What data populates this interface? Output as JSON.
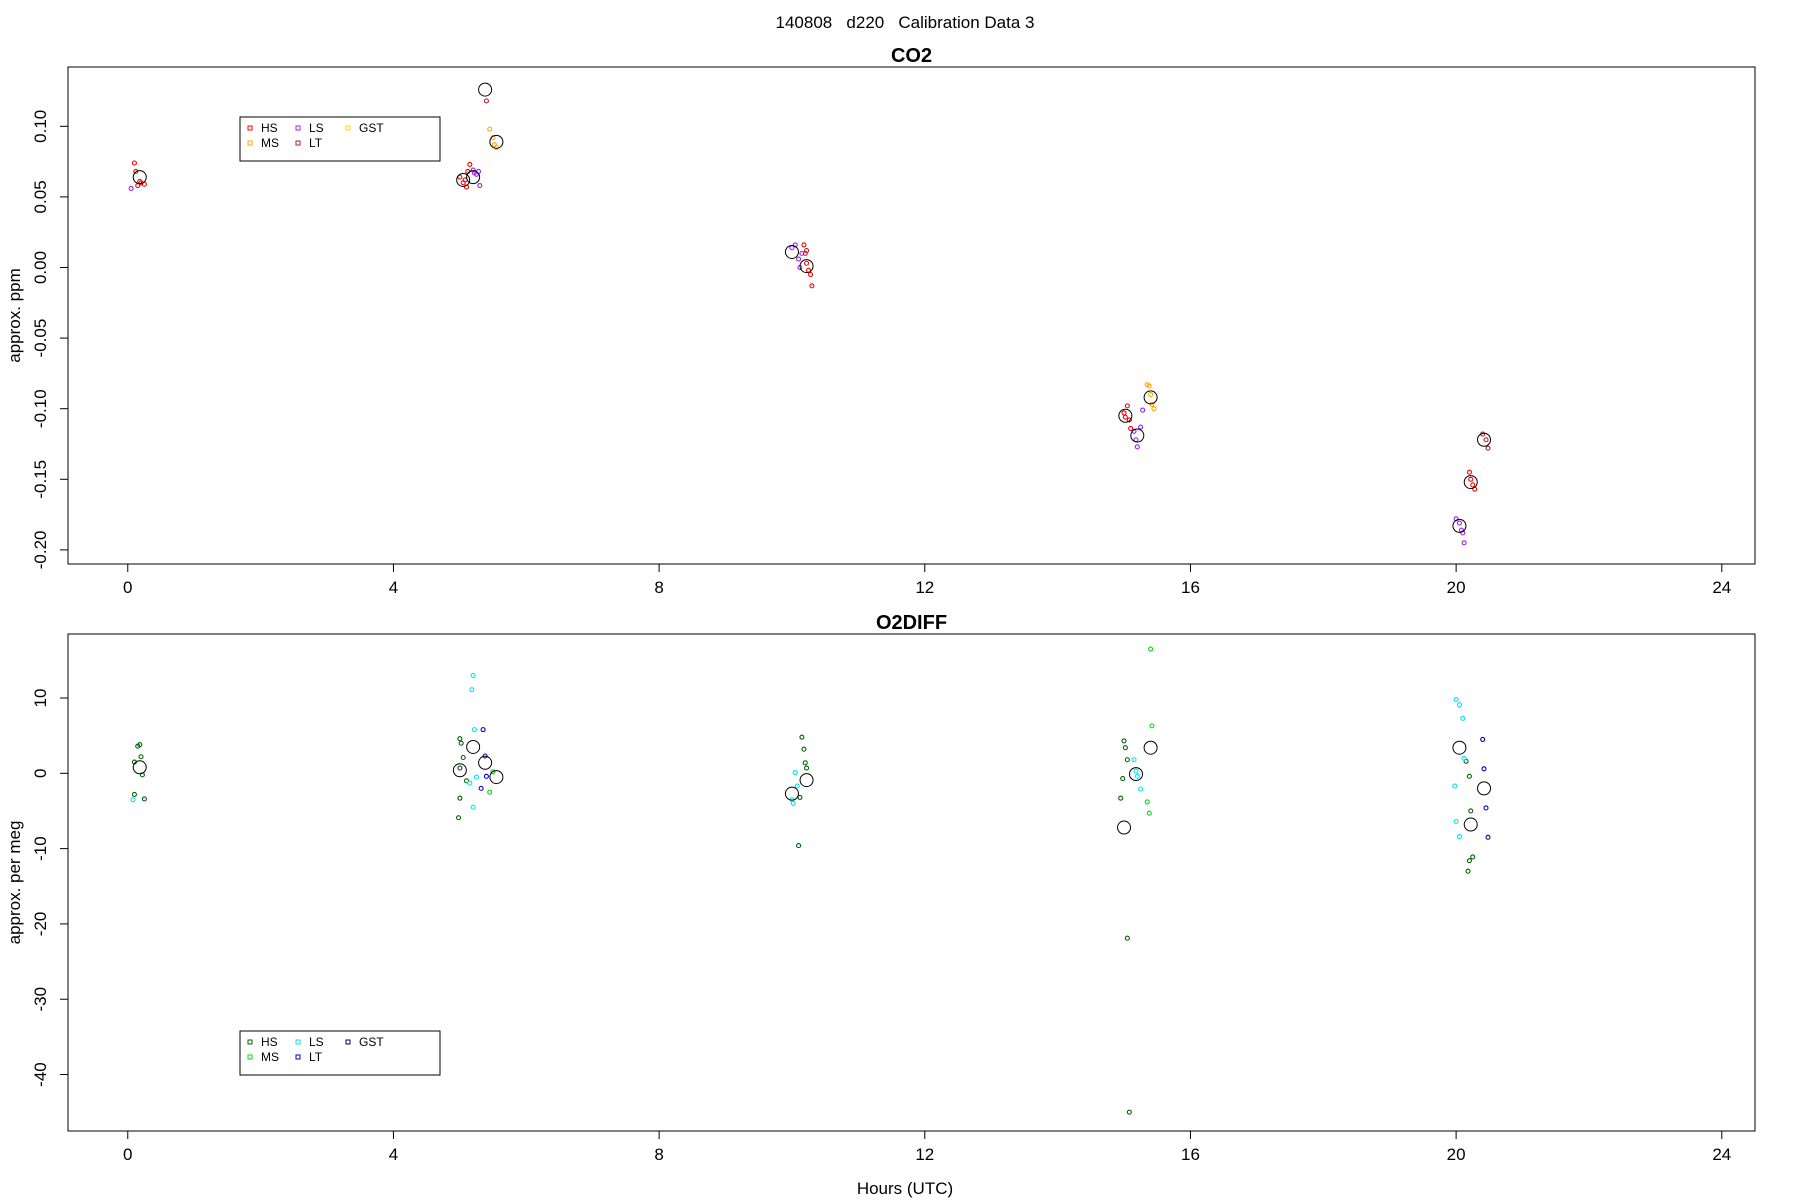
{
  "page": {
    "title": "140808   d220   Calibration Data 3"
  },
  "colors": {
    "HS": "#ff0000",
    "MS": "#ffa500",
    "LS": "#a020f0",
    "LT": "#b22222",
    "GST": "#ffd700",
    "HS2": "#006400",
    "MS2": "#00dd00",
    "LS2": "#00e5ee",
    "LT2": "#0000cd",
    "GST2": "#000080",
    "mean": "#000000"
  },
  "chart_data": [
    {
      "type": "scatter",
      "title": "CO2",
      "xlabel": "",
      "ylabel": "approx. ppm",
      "xlim": [
        -0.9,
        24.5
      ],
      "ylim": [
        -0.21,
        0.142
      ],
      "xticks": [
        0,
        4,
        8,
        12,
        16,
        20,
        24
      ],
      "yticks": [
        0.1,
        0.05,
        0.0,
        -0.05,
        -0.1,
        -0.15,
        -0.2
      ],
      "ytick_labels": [
        "0.10",
        "0.05",
        "0.00",
        "-0.05",
        "-0.10",
        "-0.15",
        "-0.20"
      ],
      "legend": {
        "placement": "top-left",
        "entries": [
          {
            "label": "HS",
            "color": "#ff0000"
          },
          {
            "label": "MS",
            "color": "#ffa500"
          },
          {
            "label": "LS",
            "color": "#a020f0"
          },
          {
            "label": "LT",
            "color": "#b22222"
          },
          {
            "label": "GST",
            "color": "#ffd700"
          }
        ]
      },
      "series": [
        {
          "name": "HS",
          "color": "#ff0000",
          "points": [
            [
              0.1,
              0.074
            ],
            [
              0.12,
              0.068
            ],
            [
              0.2,
              0.06
            ],
            [
              0.25,
              0.059
            ],
            [
              0.15,
              0.058
            ],
            [
              5.0,
              0.064
            ],
            [
              5.05,
              0.06
            ],
            [
              5.1,
              0.057
            ],
            [
              5.12,
              0.068
            ],
            [
              5.15,
              0.073
            ],
            [
              10.18,
              0.016
            ],
            [
              10.2,
              0.01
            ],
            [
              10.22,
              0.003
            ],
            [
              10.25,
              -0.002
            ],
            [
              10.28,
              -0.005
            ],
            [
              10.3,
              -0.013
            ],
            [
              15.0,
              -0.103
            ],
            [
              15.02,
              -0.106
            ],
            [
              15.05,
              -0.098
            ],
            [
              15.08,
              -0.108
            ],
            [
              15.1,
              -0.114
            ],
            [
              20.2,
              -0.145
            ],
            [
              20.22,
              -0.15
            ],
            [
              20.25,
              -0.154
            ],
            [
              20.28,
              -0.157
            ]
          ]
        },
        {
          "name": "MS",
          "color": "#ffa500",
          "points": [
            [
              5.45,
              0.098
            ],
            [
              5.5,
              0.092
            ],
            [
              5.52,
              0.087
            ],
            [
              5.55,
              0.085
            ],
            [
              15.35,
              -0.083
            ],
            [
              15.38,
              -0.084
            ],
            [
              15.4,
              -0.09
            ],
            [
              15.42,
              -0.097
            ],
            [
              15.45,
              -0.1
            ]
          ]
        },
        {
          "name": "LS",
          "color": "#a020f0",
          "points": [
            [
              0.05,
              0.056
            ],
            [
              5.2,
              0.069
            ],
            [
              5.22,
              0.067
            ],
            [
              5.25,
              0.066
            ],
            [
              5.28,
              0.068
            ],
            [
              5.3,
              0.058
            ],
            [
              10.0,
              0.014
            ],
            [
              10.05,
              0.016
            ],
            [
              10.1,
              0.006
            ],
            [
              10.12,
              0.0
            ],
            [
              10.15,
              0.01
            ],
            [
              15.15,
              -0.116
            ],
            [
              15.18,
              -0.122
            ],
            [
              15.2,
              -0.127
            ],
            [
              15.25,
              -0.113
            ],
            [
              15.28,
              -0.101
            ],
            [
              20.0,
              -0.178
            ],
            [
              20.05,
              -0.181
            ],
            [
              20.08,
              -0.186
            ],
            [
              20.1,
              -0.188
            ],
            [
              20.12,
              -0.195
            ]
          ]
        },
        {
          "name": "LT",
          "color": "#b22222",
          "points": [
            [
              0.18,
              0.061
            ],
            [
              5.08,
              0.062
            ],
            [
              5.4,
              0.118
            ],
            [
              10.22,
              0.012
            ],
            [
              20.4,
              -0.118
            ],
            [
              20.45,
              -0.122
            ],
            [
              20.48,
              -0.128
            ]
          ]
        },
        {
          "name": "GST",
          "color": "#ffd700",
          "points": []
        },
        {
          "name": "mean",
          "color": "#000000",
          "large": true,
          "points": [
            [
              0.18,
              0.064
            ],
            [
              5.05,
              0.062
            ],
            [
              5.2,
              0.064
            ],
            [
              5.38,
              0.126
            ],
            [
              5.55,
              0.089
            ],
            [
              10.0,
              0.011
            ],
            [
              10.22,
              0.001
            ],
            [
              15.02,
              -0.105
            ],
            [
              15.2,
              -0.119
            ],
            [
              15.4,
              -0.092
            ],
            [
              20.05,
              -0.183
            ],
            [
              20.22,
              -0.152
            ],
            [
              20.42,
              -0.122
            ]
          ]
        }
      ]
    },
    {
      "type": "scatter",
      "title": "O2DIFF",
      "xlabel": "Hours (UTC)",
      "ylabel": "approx. per meg",
      "xlim": [
        -0.9,
        24.5
      ],
      "ylim": [
        -47.5,
        18.5
      ],
      "xticks": [
        0,
        4,
        8,
        12,
        16,
        20,
        24
      ],
      "yticks": [
        10,
        0,
        -10,
        -20,
        -30,
        -40
      ],
      "ytick_labels": [
        "10",
        "0",
        "-10",
        "-20",
        "-30",
        "-40"
      ],
      "legend": {
        "placement": "bottom-left",
        "entries": [
          {
            "label": "HS",
            "color": "#006400"
          },
          {
            "label": "MS",
            "color": "#00dd00"
          },
          {
            "label": "LS",
            "color": "#00e5ee"
          },
          {
            "label": "LT",
            "color": "#0000cd"
          },
          {
            "label": "GST",
            "color": "#000080"
          }
        ]
      },
      "series": [
        {
          "name": "HS",
          "color": "#006400",
          "points": [
            [
              0.15,
              3.6
            ],
            [
              0.18,
              3.8
            ],
            [
              0.2,
              2.2
            ],
            [
              0.1,
              1.5
            ],
            [
              0.22,
              -0.2
            ],
            [
              0.1,
              -2.8
            ],
            [
              0.25,
              -3.4
            ],
            [
              5.0,
              4.6
            ],
            [
              5.02,
              4.0
            ],
            [
              5.05,
              2.1
            ],
            [
              5.0,
              0.7
            ],
            [
              5.1,
              -1.0
            ],
            [
              5.0,
              -3.3
            ],
            [
              4.98,
              -5.9
            ],
            [
              10.15,
              4.8
            ],
            [
              10.18,
              3.2
            ],
            [
              10.2,
              1.4
            ],
            [
              10.22,
              0.7
            ],
            [
              10.12,
              -3.2
            ],
            [
              10.1,
              -9.6
            ],
            [
              15.0,
              4.3
            ],
            [
              15.02,
              3.4
            ],
            [
              15.05,
              1.8
            ],
            [
              14.98,
              -0.7
            ],
            [
              14.95,
              -3.3
            ],
            [
              15.05,
              -21.9
            ],
            [
              15.08,
              -45.0
            ],
            [
              20.15,
              1.6
            ],
            [
              20.2,
              -0.4
            ],
            [
              20.22,
              -5.0
            ],
            [
              20.25,
              -11.1
            ],
            [
              20.2,
              -11.6
            ],
            [
              20.18,
              -13.0
            ]
          ]
        },
        {
          "name": "MS",
          "color": "#00dd00",
          "points": [
            [
              5.5,
              0.2
            ],
            [
              5.45,
              -2.5
            ],
            [
              15.4,
              16.5
            ],
            [
              15.42,
              6.3
            ],
            [
              15.35,
              -3.8
            ],
            [
              15.38,
              -5.3
            ]
          ]
        },
        {
          "name": "LS",
          "color": "#00e5ee",
          "points": [
            [
              0.08,
              -3.5
            ],
            [
              5.2,
              13.0
            ],
            [
              5.18,
              11.1
            ],
            [
              5.22,
              5.8
            ],
            [
              5.25,
              -0.5
            ],
            [
              5.15,
              -1.3
            ],
            [
              5.2,
              -4.5
            ],
            [
              10.05,
              0.1
            ],
            [
              10.08,
              -1.7
            ],
            [
              10.0,
              -3.5
            ],
            [
              10.02,
              -4.0
            ],
            [
              15.15,
              1.8
            ],
            [
              15.18,
              0.3
            ],
            [
              15.2,
              -0.4
            ],
            [
              15.25,
              -2.1
            ],
            [
              20.0,
              9.8
            ],
            [
              20.05,
              9.1
            ],
            [
              20.1,
              7.3
            ],
            [
              20.12,
              2.0
            ],
            [
              19.98,
              -1.7
            ],
            [
              20.0,
              -6.4
            ],
            [
              20.05,
              -8.4
            ]
          ]
        },
        {
          "name": "LT",
          "color": "#0000cd",
          "points": [
            [
              5.35,
              5.8
            ],
            [
              5.38,
              2.3
            ],
            [
              5.4,
              -0.4
            ],
            [
              5.32,
              -2.0
            ],
            [
              20.4,
              4.5
            ],
            [
              20.42,
              0.6
            ],
            [
              20.45,
              -4.6
            ],
            [
              20.48,
              -8.5
            ]
          ]
        },
        {
          "name": "GST",
          "color": "#000080",
          "points": []
        },
        {
          "name": "mean",
          "color": "#000000",
          "large": true,
          "points": [
            [
              0.18,
              0.8
            ],
            [
              5.0,
              0.4
            ],
            [
              5.2,
              3.5
            ],
            [
              5.38,
              1.4
            ],
            [
              5.55,
              -0.5
            ],
            [
              10.0,
              -2.7
            ],
            [
              10.22,
              -0.9
            ],
            [
              15.0,
              -7.2
            ],
            [
              15.18,
              -0.1
            ],
            [
              15.4,
              3.4
            ],
            [
              20.05,
              3.4
            ],
            [
              20.22,
              -6.8
            ],
            [
              20.42,
              -2.0
            ]
          ]
        }
      ]
    }
  ]
}
